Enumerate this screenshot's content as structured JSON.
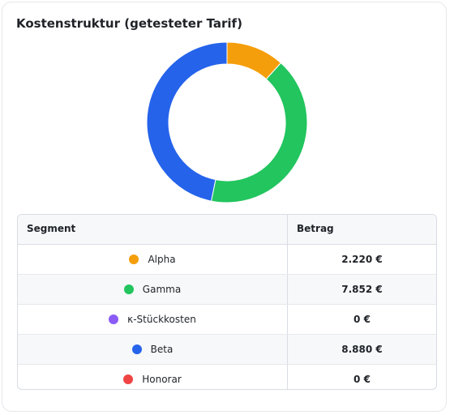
{
  "card": {
    "title": "Kostenstruktur (getesteter Tarif)"
  },
  "table": {
    "headers": {
      "segment": "Segment",
      "amount": "Betrag"
    },
    "rows": [
      {
        "label": "Alpha",
        "amount": "2.220 €",
        "color": "#f59e0b"
      },
      {
        "label": "Gamma",
        "amount": "7.852 €",
        "color": "#22c55e"
      },
      {
        "label": "κ-Stückkosten",
        "amount": "0 €",
        "color": "#8b5cf6"
      },
      {
        "label": "Beta",
        "amount": "8.880 €",
        "color": "#2563eb"
      },
      {
        "label": "Honorar",
        "amount": "0 €",
        "color": "#ef4444"
      }
    ]
  },
  "chart_data": {
    "type": "pie",
    "categories": [
      "Alpha",
      "Gamma",
      "κ-Stückkosten",
      "Beta",
      "Honorar"
    ],
    "values": [
      2220,
      7852,
      0,
      8880,
      0
    ],
    "colors": [
      "#f59e0b",
      "#22c55e",
      "#8b5cf6",
      "#2563eb",
      "#ef4444"
    ],
    "unit": "€"
  }
}
